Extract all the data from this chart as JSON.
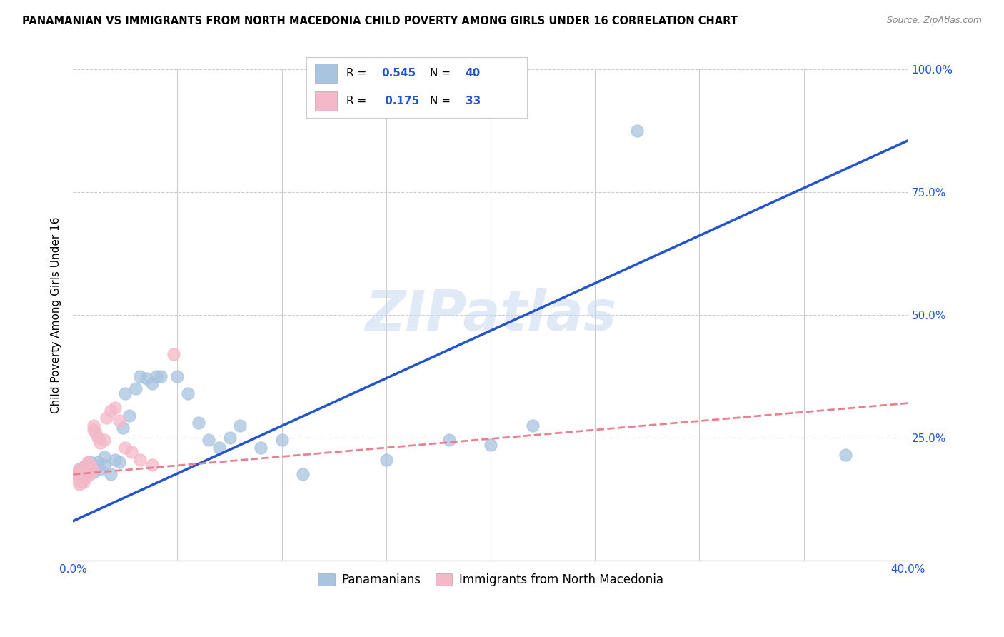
{
  "title": "PANAMANIAN VS IMMIGRANTS FROM NORTH MACEDONIA CHILD POVERTY AMONG GIRLS UNDER 16 CORRELATION CHART",
  "source": "Source: ZipAtlas.com",
  "ylabel": "Child Poverty Among Girls Under 16",
  "xlim": [
    0.0,
    0.4
  ],
  "ylim": [
    0.0,
    1.0
  ],
  "xticks": [
    0.0,
    0.05,
    0.1,
    0.15,
    0.2,
    0.25,
    0.3,
    0.35,
    0.4
  ],
  "xticklabels": [
    "0.0%",
    "",
    "",
    "",
    "",
    "",
    "",
    "",
    "40.0%"
  ],
  "yticks": [
    0.0,
    0.25,
    0.5,
    0.75,
    1.0
  ],
  "yticklabels": [
    "",
    "25.0%",
    "50.0%",
    "75.0%",
    "100.0%"
  ],
  "blue_R": 0.545,
  "blue_N": 40,
  "pink_R": 0.175,
  "pink_N": 33,
  "blue_color": "#a8c4e0",
  "pink_color": "#f4b8c8",
  "blue_line_color": "#2255cc",
  "pink_line_color": "#e88090",
  "watermark": "ZIPatlas",
  "legend_label_blue": "Panamanians",
  "legend_label_pink": "Immigrants from North Macedonia",
  "blue_scatter_x": [
    0.003,
    0.005,
    0.005,
    0.007,
    0.008,
    0.008,
    0.01,
    0.01,
    0.012,
    0.013,
    0.015,
    0.015,
    0.018,
    0.02,
    0.022,
    0.024,
    0.025,
    0.027,
    0.03,
    0.032,
    0.035,
    0.038,
    0.04,
    0.042,
    0.05,
    0.055,
    0.06,
    0.065,
    0.07,
    0.075,
    0.08,
    0.09,
    0.1,
    0.11,
    0.15,
    0.18,
    0.2,
    0.22,
    0.27,
    0.37
  ],
  "blue_scatter_y": [
    0.185,
    0.175,
    0.19,
    0.195,
    0.185,
    0.2,
    0.195,
    0.18,
    0.2,
    0.185,
    0.195,
    0.21,
    0.175,
    0.205,
    0.2,
    0.27,
    0.34,
    0.295,
    0.35,
    0.375,
    0.37,
    0.36,
    0.375,
    0.375,
    0.375,
    0.34,
    0.28,
    0.245,
    0.23,
    0.25,
    0.275,
    0.23,
    0.245,
    0.175,
    0.205,
    0.245,
    0.235,
    0.275,
    0.875,
    0.215
  ],
  "pink_scatter_x": [
    0.001,
    0.002,
    0.002,
    0.003,
    0.003,
    0.003,
    0.004,
    0.004,
    0.005,
    0.005,
    0.005,
    0.006,
    0.006,
    0.007,
    0.007,
    0.008,
    0.008,
    0.009,
    0.01,
    0.01,
    0.011,
    0.012,
    0.013,
    0.015,
    0.016,
    0.018,
    0.02,
    0.022,
    0.025,
    0.028,
    0.032,
    0.038,
    0.048
  ],
  "pink_scatter_y": [
    0.175,
    0.165,
    0.18,
    0.185,
    0.17,
    0.155,
    0.175,
    0.16,
    0.19,
    0.175,
    0.16,
    0.185,
    0.17,
    0.2,
    0.185,
    0.195,
    0.175,
    0.185,
    0.265,
    0.275,
    0.26,
    0.25,
    0.24,
    0.245,
    0.29,
    0.305,
    0.31,
    0.285,
    0.23,
    0.22,
    0.205,
    0.195,
    0.42
  ],
  "figsize": [
    14.06,
    8.92
  ],
  "dpi": 100,
  "blue_line_x0": 0.0,
  "blue_line_y0": 0.08,
  "blue_line_x1": 0.4,
  "blue_line_y1": 0.855,
  "pink_line_x0": 0.0,
  "pink_line_y0": 0.175,
  "pink_line_x1": 0.4,
  "pink_line_y1": 0.32
}
